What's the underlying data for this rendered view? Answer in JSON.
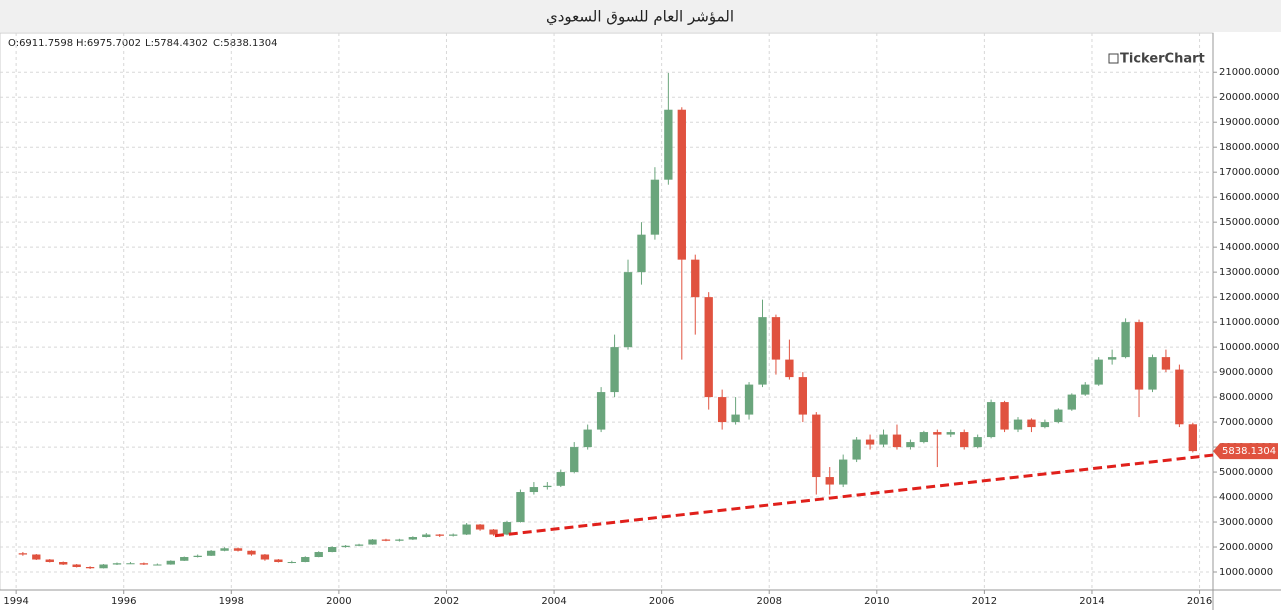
{
  "chart_data": {
    "type": "candlestick",
    "title": "المؤشر العام للسوق السعودي",
    "ohlc_header": [
      "O:6911.7598",
      "H:6975.7002",
      "L:5784.4302",
      "C:5838.1304"
    ],
    "watermark": "TickerChart",
    "up_color": "#6aa57c",
    "down_color": "#e0523f",
    "grid": true,
    "xlim": [
      1993.7,
      2016.25
    ],
    "xticks": [
      1994,
      1996,
      1998,
      2000,
      2002,
      2004,
      2006,
      2008,
      2010,
      2012,
      2014,
      2016
    ],
    "ylim": [
      280,
      22570
    ],
    "yticks": [
      {
        "value": 1000,
        "label": "1000.0000"
      },
      {
        "value": 2000,
        "label": "2000.0000"
      },
      {
        "value": 3000,
        "label": "3000.0000"
      },
      {
        "value": 4000,
        "label": "4000.0000"
      },
      {
        "value": 5000,
        "label": "5000.0000"
      },
      {
        "value": 6000,
        "label": "6000.0000"
      },
      {
        "value": 7000,
        "label": "7000.0000"
      },
      {
        "value": 8000,
        "label": "8000.0000"
      },
      {
        "value": 9000,
        "label": "9000.0000"
      },
      {
        "value": 10000,
        "label": "10000.0000"
      },
      {
        "value": 11000,
        "label": "11000.0000"
      },
      {
        "value": 12000,
        "label": "12000.0000"
      },
      {
        "value": 13000,
        "label": "13000.0000"
      },
      {
        "value": 14000,
        "label": "14000.0000"
      },
      {
        "value": 15000,
        "label": "15000.0000"
      },
      {
        "value": 16000,
        "label": "16000.0000"
      },
      {
        "value": 17000,
        "label": "17000.0000"
      },
      {
        "value": 18000,
        "label": "18000.0000"
      },
      {
        "value": 19000,
        "label": "19000.0000"
      },
      {
        "value": 20000,
        "label": "20000.0000"
      },
      {
        "value": 21000,
        "label": "21000.0000"
      }
    ],
    "x": [
      1994.125,
      1994.375,
      1994.625,
      1994.875,
      1995.125,
      1995.375,
      1995.625,
      1995.875,
      1996.125,
      1996.375,
      1996.625,
      1996.875,
      1997.125,
      1997.375,
      1997.625,
      1997.875,
      1998.125,
      1998.375,
      1998.625,
      1998.875,
      1999.125,
      1999.375,
      1999.625,
      1999.875,
      2000.125,
      2000.375,
      2000.625,
      2000.875,
      2001.125,
      2001.375,
      2001.625,
      2001.875,
      2002.125,
      2002.375,
      2002.625,
      2002.875,
      2003.125,
      2003.375,
      2003.625,
      2003.875,
      2004.125,
      2004.375,
      2004.625,
      2004.875,
      2005.125,
      2005.375,
      2005.625,
      2005.875,
      2006.125,
      2006.375,
      2006.625,
      2006.875,
      2007.125,
      2007.375,
      2007.625,
      2007.875,
      2008.125,
      2008.375,
      2008.625,
      2008.875,
      2009.125,
      2009.375,
      2009.625,
      2009.875,
      2010.125,
      2010.375,
      2010.625,
      2010.875,
      2011.125,
      2011.375,
      2011.625,
      2011.875,
      2012.125,
      2012.375,
      2012.625,
      2012.875,
      2013.125,
      2013.375,
      2013.625,
      2013.875,
      2014.125,
      2014.375,
      2014.625,
      2014.875,
      2015.125,
      2015.375,
      2015.625,
      2015.875
    ],
    "open": [
      1750,
      1700,
      1500,
      1400,
      1300,
      1200,
      1150,
      1300,
      1350,
      1350,
      1300,
      1300,
      1450,
      1600,
      1650,
      1850,
      1950,
      1850,
      1700,
      1500,
      1400,
      1400,
      1600,
      1800,
      2000,
      2050,
      2100,
      2300,
      2250,
      2300,
      2400,
      2500,
      2450,
      2500,
      2900,
      2700,
      2500,
      3000,
      4200,
      4400,
      4450,
      5000,
      6000,
      6700,
      8200,
      10000,
      13000,
      14500,
      16700,
      19500,
      13500,
      12000,
      8000,
      7000,
      7300,
      8500,
      11200,
      9500,
      8800,
      7300,
      4800,
      4500,
      5500,
      6300,
      6100,
      6500,
      6000,
      6200,
      6600,
      6500,
      6600,
      6000,
      6400,
      7800,
      6700,
      7100,
      6800,
      7000,
      7500,
      8100,
      8500,
      9500,
      9600,
      11000,
      8300,
      9600,
      9100,
      6911.7598
    ],
    "high": [
      1800,
      1720,
      1520,
      1420,
      1320,
      1230,
      1320,
      1380,
      1400,
      1380,
      1340,
      1470,
      1620,
      1700,
      1880,
      1990,
      1980,
      1870,
      1720,
      1520,
      1450,
      1630,
      1830,
      2030,
      2080,
      2130,
      2320,
      2330,
      2330,
      2430,
      2560,
      2520,
      2540,
      2960,
      2920,
      2720,
      3050,
      4300,
      4600,
      4600,
      5100,
      6200,
      6900,
      8400,
      10500,
      13500,
      15000,
      17200,
      20970,
      19600,
      13700,
      12200,
      8300,
      8000,
      8600,
      11900,
      11300,
      10300,
      9000,
      7400,
      5200,
      5700,
      6400,
      6500,
      6700,
      6900,
      6300,
      6650,
      6700,
      6700,
      6700,
      6500,
      7900,
      7850,
      7200,
      7150,
      7100,
      7550,
      8150,
      8600,
      9600,
      9900,
      11150,
      11100,
      9700,
      9900,
      9300,
      6975.7002
    ],
    "low": [
      1650,
      1480,
      1380,
      1280,
      1180,
      1120,
      1140,
      1280,
      1320,
      1280,
      1270,
      1290,
      1440,
      1580,
      1640,
      1830,
      1820,
      1650,
      1450,
      1380,
      1350,
      1390,
      1590,
      1790,
      1970,
      2030,
      2090,
      2230,
      2220,
      2280,
      2380,
      2400,
      2420,
      2480,
      2650,
      2450,
      2470,
      2980,
      4100,
      4300,
      4400,
      4950,
      5900,
      6600,
      8000,
      9900,
      12500,
      14300,
      16500,
      9500,
      10500,
      7500,
      6700,
      6900,
      7100,
      8400,
      8900,
      8700,
      7000,
      4100,
      4100,
      4400,
      5400,
      5900,
      6000,
      5900,
      5900,
      6150,
      5200,
      6400,
      5900,
      5950,
      6350,
      6600,
      6600,
      6600,
      6750,
      6950,
      7450,
      8050,
      8450,
      9300,
      9550,
      7200,
      8200,
      9000,
      6800,
      5784.4302
    ],
    "close": [
      1700,
      1500,
      1400,
      1300,
      1200,
      1150,
      1300,
      1350,
      1350,
      1300,
      1300,
      1450,
      1600,
      1650,
      1850,
      1950,
      1850,
      1700,
      1500,
      1400,
      1400,
      1600,
      1800,
      2000,
      2050,
      2100,
      2300,
      2250,
      2300,
      2400,
      2500,
      2450,
      2500,
      2900,
      2700,
      2500,
      3000,
      4200,
      4400,
      4450,
      5000,
      6000,
      6700,
      8200,
      10000,
      13000,
      14500,
      16700,
      19500,
      13500,
      12000,
      8000,
      7000,
      7300,
      8500,
      11200,
      9500,
      8800,
      7300,
      4800,
      4500,
      5500,
      6300,
      6100,
      6500,
      6000,
      6200,
      6600,
      6500,
      6600,
      6000,
      6400,
      7800,
      6700,
      7100,
      6800,
      7000,
      7500,
      8100,
      8500,
      9500,
      9600,
      11000,
      8300,
      9600,
      9100,
      6911.7598,
      5838.1304
    ],
    "trendline": {
      "x": [
        2002.9,
        2016.25
      ],
      "y": [
        2450,
        5680
      ],
      "color": "#e0201b"
    }
  }
}
